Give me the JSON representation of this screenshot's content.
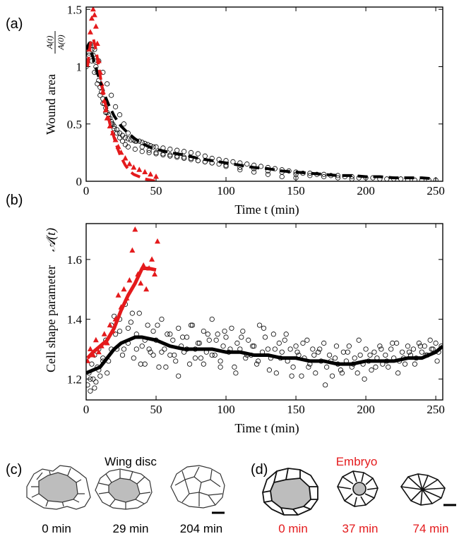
{
  "chart_data": [
    {
      "panel_label": "(a)",
      "type": "scatter",
      "xlabel": "Time t (min)",
      "ylabel": "Wound area",
      "ylabel_fraction": {
        "num": "A(t)",
        "den": "A(0)"
      },
      "xlim": [
        0,
        255
      ],
      "ylim": [
        0,
        1.52
      ],
      "xticks": [
        0,
        50,
        100,
        150,
        200,
        250
      ],
      "yticks": [
        0,
        0.5,
        1,
        1.5
      ],
      "ytick_labels": [
        "0",
        "0.5",
        "1",
        "1.5"
      ],
      "grid": false,
      "series": [
        {
          "marker": "open-circle",
          "color": "#000000",
          "x": [
            0,
            1,
            2,
            3,
            4,
            5,
            6,
            7,
            8,
            9,
            10,
            11,
            12,
            13,
            14,
            15,
            16,
            17,
            18,
            19,
            20,
            22,
            24,
            26,
            28,
            30,
            32,
            34,
            36,
            38,
            40,
            42,
            44,
            46,
            48,
            50,
            55,
            60,
            65,
            70,
            75,
            80,
            85,
            90,
            95,
            100,
            105,
            110,
            115,
            120,
            125,
            130,
            135,
            140,
            145,
            150,
            155,
            160,
            165,
            170,
            175,
            180,
            185,
            190,
            195,
            200,
            205,
            210,
            215,
            220,
            225,
            230,
            235,
            240,
            245,
            250,
            2,
            4,
            6,
            8,
            10,
            12,
            14,
            16,
            18,
            20,
            22,
            24,
            26,
            28,
            30,
            35,
            40,
            45,
            50,
            55,
            60,
            65,
            70,
            75,
            80,
            85,
            90,
            95,
            100,
            110,
            120,
            130,
            140,
            150,
            160,
            170,
            180,
            190,
            3,
            6,
            9,
            12,
            15,
            18,
            21,
            24,
            27,
            30,
            35,
            40,
            45,
            50,
            55,
            60,
            65,
            70,
            75,
            80,
            85,
            90,
            100,
            110,
            120,
            130,
            140,
            150
          ],
          "y": [
            1.0,
            1.05,
            1.12,
            1.18,
            1.15,
            1.1,
            1.05,
            1.0,
            0.95,
            0.88,
            0.82,
            0.78,
            0.72,
            0.68,
            0.64,
            0.6,
            0.58,
            0.55,
            0.52,
            0.5,
            0.48,
            0.45,
            0.42,
            0.4,
            0.38,
            0.37,
            0.36,
            0.36,
            0.35,
            0.35,
            0.34,
            0.33,
            0.32,
            0.31,
            0.3,
            0.3,
            0.29,
            0.28,
            0.27,
            0.26,
            0.25,
            0.24,
            0.22,
            0.2,
            0.19,
            0.18,
            0.17,
            0.16,
            0.15,
            0.14,
            0.13,
            0.12,
            0.11,
            0.1,
            0.09,
            0.08,
            0.07,
            0.07,
            0.06,
            0.06,
            0.05,
            0.05,
            0.04,
            0.04,
            0.03,
            0.03,
            0.03,
            0.02,
            0.02,
            0.02,
            0.02,
            0.01,
            0.01,
            0.01,
            0.01,
            0.01,
            1.1,
            1.05,
            0.95,
            0.85,
            0.75,
            0.68,
            0.6,
            0.55,
            0.5,
            0.46,
            0.42,
            0.38,
            0.35,
            0.32,
            0.3,
            0.28,
            0.26,
            0.25,
            0.24,
            0.23,
            0.22,
            0.21,
            0.2,
            0.19,
            0.18,
            0.17,
            0.16,
            0.15,
            0.14,
            0.12,
            0.11,
            0.09,
            0.08,
            0.06,
            0.05,
            0.04,
            0.03,
            0.02,
            1.2,
            1.15,
            1.05,
            0.95,
            0.85,
            0.75,
            0.65,
            0.58,
            0.5,
            0.42,
            0.35,
            0.3,
            0.27,
            0.25,
            0.24,
            0.23,
            0.22,
            0.21,
            0.2,
            0.18,
            0.17,
            0.16,
            0.13,
            0.1,
            0.08,
            0.06,
            0.04,
            0.03
          ]
        },
        {
          "marker": "filled-triangle",
          "color": "#e41a1c",
          "x": [
            1,
            2,
            3,
            4,
            5,
            6,
            7,
            8,
            9,
            10,
            11,
            12,
            13,
            14,
            15,
            17,
            19,
            21,
            23,
            25,
            28,
            31,
            34,
            38,
            42,
            46,
            50
          ],
          "y": [
            1.05,
            1.15,
            1.3,
            1.42,
            1.5,
            1.45,
            1.35,
            1.2,
            1.05,
            0.95,
            0.85,
            0.78,
            0.7,
            0.62,
            0.55,
            0.48,
            0.42,
            0.36,
            0.3,
            0.25,
            0.2,
            0.15,
            0.12,
            0.1,
            0.08,
            0.06,
            0.04
          ]
        },
        {
          "line": "dashed",
          "color": "#000000",
          "x": [
            0,
            2,
            4,
            6,
            8,
            10,
            12,
            14,
            16,
            18,
            20,
            25,
            30,
            35,
            40,
            45,
            50,
            60,
            70,
            80,
            90,
            100,
            110,
            120,
            130,
            140,
            150,
            160,
            170,
            180,
            190,
            200,
            210,
            220,
            230,
            240,
            250
          ],
          "y": [
            1.15,
            1.2,
            1.12,
            1.03,
            0.95,
            0.87,
            0.8,
            0.73,
            0.67,
            0.62,
            0.57,
            0.48,
            0.42,
            0.37,
            0.33,
            0.3,
            0.28,
            0.25,
            0.23,
            0.2,
            0.18,
            0.16,
            0.14,
            0.12,
            0.11,
            0.09,
            0.08,
            0.07,
            0.06,
            0.05,
            0.05,
            0.04,
            0.04,
            0.03,
            0.03,
            0.03,
            0.02
          ]
        },
        {
          "line": "dashed",
          "color": "#e41a1c",
          "x": [
            1,
            3,
            5,
            7,
            9,
            11,
            13,
            15,
            17,
            19,
            21,
            23,
            25,
            28,
            31,
            34,
            38,
            42,
            46,
            50
          ],
          "y": [
            1.0,
            1.2,
            1.25,
            1.15,
            1.0,
            0.85,
            0.72,
            0.6,
            0.5,
            0.42,
            0.34,
            0.27,
            0.21,
            0.14,
            0.09,
            0.06,
            0.04,
            0.02,
            0.01,
            0.0
          ]
        }
      ]
    },
    {
      "panel_label": "(b)",
      "type": "scatter",
      "xlabel": "Time t (min)",
      "ylabel": "Cell shape parameter",
      "ylabel_symbol": "𝒜(t)",
      "xlim": [
        0,
        255
      ],
      "ylim": [
        1.13,
        1.72
      ],
      "xticks": [
        0,
        50,
        100,
        150,
        200,
        250
      ],
      "yticks": [
        1.2,
        1.4,
        1.6
      ],
      "ytick_labels": [
        "1.2",
        "1.4",
        "1.6"
      ],
      "grid": false,
      "series": [
        {
          "marker": "open-circle",
          "color": "#000000",
          "x": [
            1,
            2,
            3,
            4,
            5,
            6,
            7,
            8,
            9,
            10,
            12,
            14,
            16,
            18,
            20,
            22,
            24,
            26,
            28,
            30,
            32,
            34,
            36,
            38,
            40,
            42,
            44,
            46,
            48,
            50,
            52,
            54,
            56,
            58,
            60,
            62,
            64,
            66,
            68,
            70,
            72,
            74,
            76,
            78,
            80,
            82,
            84,
            86,
            88,
            90,
            92,
            94,
            96,
            98,
            100,
            102,
            104,
            106,
            108,
            110,
            112,
            114,
            116,
            118,
            120,
            122,
            124,
            126,
            128,
            130,
            132,
            134,
            136,
            138,
            140,
            142,
            144,
            146,
            148,
            150,
            152,
            154,
            156,
            158,
            160,
            162,
            164,
            166,
            168,
            170,
            172,
            174,
            176,
            178,
            180,
            182,
            184,
            186,
            188,
            190,
            192,
            194,
            196,
            198,
            200,
            202,
            204,
            206,
            208,
            210,
            212,
            214,
            216,
            218,
            220,
            222,
            224,
            226,
            228,
            230,
            232,
            234,
            236,
            238,
            240,
            242,
            244,
            246,
            248,
            250,
            252,
            254,
            3,
            6,
            9,
            12,
            15,
            18,
            21,
            24,
            27,
            30,
            33,
            36,
            39,
            42,
            45,
            48,
            51,
            54,
            57,
            60,
            63,
            66,
            69,
            72,
            75,
            78,
            81,
            84,
            87,
            90,
            93,
            96,
            99,
            103,
            107,
            111,
            115,
            119,
            123,
            127,
            131,
            135,
            139,
            143,
            147,
            151,
            155,
            159,
            163,
            167,
            171,
            175,
            179,
            183,
            187,
            191,
            195,
            199,
            203,
            207,
            211,
            215,
            219,
            223,
            227,
            231,
            235,
            239,
            243,
            247,
            251
          ],
          "y": [
            1.18,
            1.22,
            1.16,
            1.25,
            1.2,
            1.28,
            1.19,
            1.24,
            1.3,
            1.21,
            1.27,
            1.33,
            1.26,
            1.38,
            1.41,
            1.3,
            1.36,
            1.28,
            1.45,
            1.32,
            1.39,
            1.27,
            1.35,
            1.42,
            1.31,
            1.25,
            1.38,
            1.29,
            1.36,
            1.33,
            1.24,
            1.4,
            1.3,
            1.35,
            1.28,
            1.33,
            1.26,
            1.37,
            1.31,
            1.29,
            1.34,
            1.25,
            1.38,
            1.3,
            1.32,
            1.27,
            1.36,
            1.29,
            1.33,
            1.4,
            1.28,
            1.35,
            1.26,
            1.31,
            1.34,
            1.29,
            1.37,
            1.24,
            1.32,
            1.3,
            1.36,
            1.27,
            1.33,
            1.28,
            1.31,
            1.25,
            1.38,
            1.29,
            1.34,
            1.3,
            1.27,
            1.35,
            1.22,
            1.32,
            1.29,
            1.33,
            1.26,
            1.3,
            1.24,
            1.31,
            1.28,
            1.21,
            1.27,
            1.33,
            1.25,
            1.3,
            1.22,
            1.29,
            1.26,
            1.32,
            1.24,
            1.28,
            1.21,
            1.27,
            1.25,
            1.23,
            1.29,
            1.26,
            1.31,
            1.24,
            1.27,
            1.22,
            1.28,
            1.25,
            1.3,
            1.26,
            1.23,
            1.29,
            1.27,
            1.31,
            1.25,
            1.28,
            1.24,
            1.3,
            1.27,
            1.32,
            1.26,
            1.29,
            1.25,
            1.31,
            1.28,
            1.3,
            1.27,
            1.32,
            1.29,
            1.31,
            1.28,
            1.33,
            1.3,
            1.32,
            1.29,
            1.31,
            1.2,
            1.17,
            1.23,
            1.26,
            1.22,
            1.3,
            1.35,
            1.4,
            1.3,
            1.37,
            1.42,
            1.3,
            1.25,
            1.33,
            1.3,
            1.28,
            1.38,
            1.29,
            1.24,
            1.35,
            1.28,
            1.21,
            1.34,
            1.3,
            1.38,
            1.27,
            1.32,
            1.25,
            1.35,
            1.28,
            1.33,
            1.24,
            1.36,
            1.3,
            1.22,
            1.34,
            1.28,
            1.31,
            1.26,
            1.37,
            1.23,
            1.3,
            1.27,
            1.35,
            1.21,
            1.29,
            1.32,
            1.24,
            1.28,
            1.3,
            1.18,
            1.26,
            1.31,
            1.22,
            1.29,
            1.25,
            1.33,
            1.2,
            1.28,
            1.24,
            1.3,
            1.26,
            1.32,
            1.22,
            1.27,
            1.29,
            1.25,
            1.31,
            1.28,
            1.3,
            1.26
          ],
          "y_extra_note": ""
        },
        {
          "marker": "filled-triangle",
          "color": "#e41a1c",
          "x": [
            1,
            3,
            5,
            7,
            9,
            11,
            13,
            15,
            17,
            19,
            21,
            23,
            25,
            27,
            29,
            31,
            33,
            35,
            37,
            39,
            41,
            43,
            45,
            47,
            49,
            51
          ],
          "y": [
            1.26,
            1.3,
            1.28,
            1.33,
            1.29,
            1.31,
            1.35,
            1.32,
            1.38,
            1.36,
            1.4,
            1.48,
            1.44,
            1.5,
            1.47,
            1.53,
            1.63,
            1.7,
            1.55,
            1.52,
            1.58,
            1.5,
            1.57,
            1.6,
            1.55,
            1.66
          ]
        },
        {
          "line": "solid",
          "color": "#e41a1c",
          "x": [
            1,
            5,
            10,
            15,
            20,
            25,
            30,
            35,
            40,
            45,
            50
          ],
          "y": [
            1.27,
            1.29,
            1.31,
            1.33,
            1.37,
            1.43,
            1.48,
            1.52,
            1.57,
            1.57,
            1.565
          ]
        },
        {
          "line": "solid",
          "color": "#000000",
          "x": [
            0,
            5,
            10,
            15,
            20,
            25,
            30,
            35,
            40,
            50,
            60,
            70,
            80,
            90,
            100,
            110,
            120,
            130,
            140,
            150,
            160,
            170,
            180,
            190,
            200,
            210,
            220,
            230,
            240,
            250,
            255
          ],
          "y": [
            1.22,
            1.23,
            1.24,
            1.27,
            1.3,
            1.32,
            1.33,
            1.34,
            1.34,
            1.33,
            1.31,
            1.3,
            1.3,
            1.3,
            1.29,
            1.29,
            1.28,
            1.28,
            1.27,
            1.27,
            1.26,
            1.26,
            1.25,
            1.25,
            1.26,
            1.26,
            1.26,
            1.27,
            1.27,
            1.29,
            1.31
          ]
        }
      ]
    }
  ],
  "panel_c": {
    "label": "(c)",
    "title": "Wing disc",
    "time_labels": [
      "0 min",
      "29 min",
      "204 min"
    ]
  },
  "panel_d": {
    "label": "(d)",
    "title": "Embryo",
    "time_labels": [
      "0 min",
      "37 min",
      "74 min"
    ]
  },
  "colors": {
    "wing": "#000000",
    "embryo": "#e41a1c",
    "wound_fill": "#bdbdbd"
  }
}
